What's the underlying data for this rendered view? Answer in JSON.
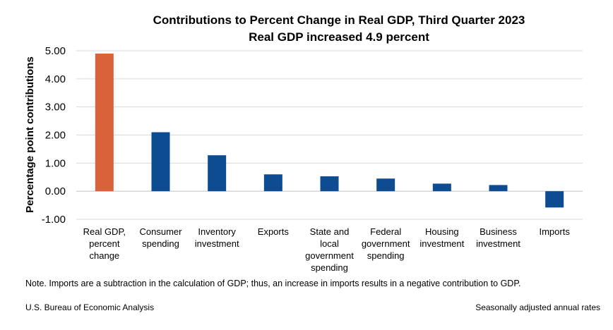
{
  "chart_data": {
    "type": "bar",
    "title": "Contributions to Percent Change in Real GDP, Third Quarter 2023",
    "subtitle": "Real GDP increased 4.9 percent",
    "xlabel": "",
    "ylabel": "Percentage point contributions",
    "ylim": [
      -1.0,
      5.0
    ],
    "yticks": [
      "5.00",
      "4.00",
      "3.00",
      "2.00",
      "1.00",
      "0.00",
      "-1.00"
    ],
    "grid": true,
    "categories": [
      [
        "Real GDP,",
        "percent",
        "change"
      ],
      [
        "Consumer",
        "spending"
      ],
      [
        "Inventory",
        "investment"
      ],
      [
        "Exports"
      ],
      [
        "State and",
        "local",
        "government",
        "spending"
      ],
      [
        "Federal",
        "government",
        "spending"
      ],
      [
        "Housing",
        "investment"
      ],
      [
        "Business",
        "investment"
      ],
      [
        "Imports"
      ]
    ],
    "values": [
      4.9,
      2.1,
      1.28,
      0.6,
      0.53,
      0.45,
      0.27,
      0.22,
      -0.58
    ],
    "colors": [
      "#d9623b",
      "#0e4c92",
      "#0e4c92",
      "#0e4c92",
      "#0e4c92",
      "#0e4c92",
      "#0e4c92",
      "#0e4c92",
      "#0e4c92"
    ]
  },
  "footer": {
    "note": "Note. Imports are a subtraction in the calculation of GDP; thus, an increase in imports results in a negative contribution to GDP.",
    "source": "U.S. Bureau of Economic Analysis",
    "basis": "Seasonally adjusted annual rates"
  },
  "colors": {
    "grid": "#d9d9d9",
    "axis": "#bfbfbf"
  }
}
